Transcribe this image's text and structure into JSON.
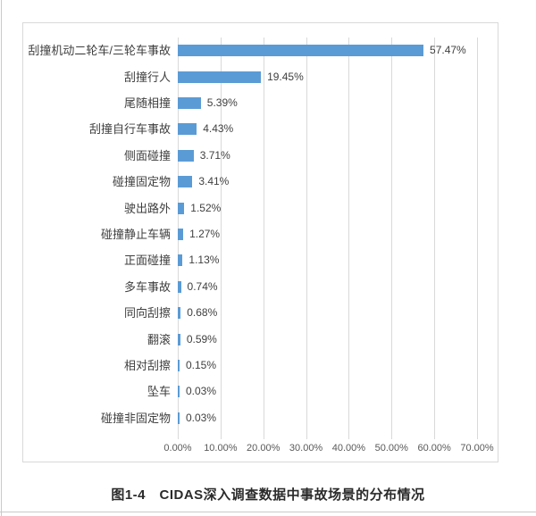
{
  "figure": {
    "caption": "图1-4　CIDAS深入调查数据中事故场景的分布情况"
  },
  "chart_data": {
    "type": "bar",
    "orientation": "horizontal",
    "title": "",
    "xlabel": "",
    "ylabel": "",
    "categories": [
      "刮撞机动二轮车/三轮车事故",
      "刮撞行人",
      "尾随相撞",
      "刮撞自行车事故",
      "侧面碰撞",
      "碰撞固定物",
      "驶出路外",
      "碰撞静止车辆",
      "正面碰撞",
      "多车事故",
      "同向刮擦",
      "翻滚",
      "相对刮擦",
      "坠车",
      "碰撞非固定物"
    ],
    "values": [
      57.47,
      19.45,
      5.39,
      4.43,
      3.71,
      3.41,
      1.52,
      1.27,
      1.13,
      0.74,
      0.68,
      0.59,
      0.15,
      0.03,
      0.03
    ],
    "value_labels": [
      "57.47%",
      "19.45%",
      "5.39%",
      "4.43%",
      "3.71%",
      "3.41%",
      "1.52%",
      "1.27%",
      "1.13%",
      "0.74%",
      "0.68%",
      "0.59%",
      "0.15%",
      "0.03%",
      "0.03%"
    ],
    "x_axis": {
      "min": 0,
      "max": 70,
      "tick_step": 10,
      "tick_labels": [
        "0.00%",
        "10.00%",
        "20.00%",
        "30.00%",
        "40.00%",
        "50.00%",
        "60.00%",
        "70.00%"
      ]
    },
    "grid": true,
    "legend": false,
    "colors": {
      "bar": "#5b9bd5",
      "gridline": "#d9d9d9",
      "axis_text": "#595959",
      "label_text": "#3f3f3f"
    }
  }
}
